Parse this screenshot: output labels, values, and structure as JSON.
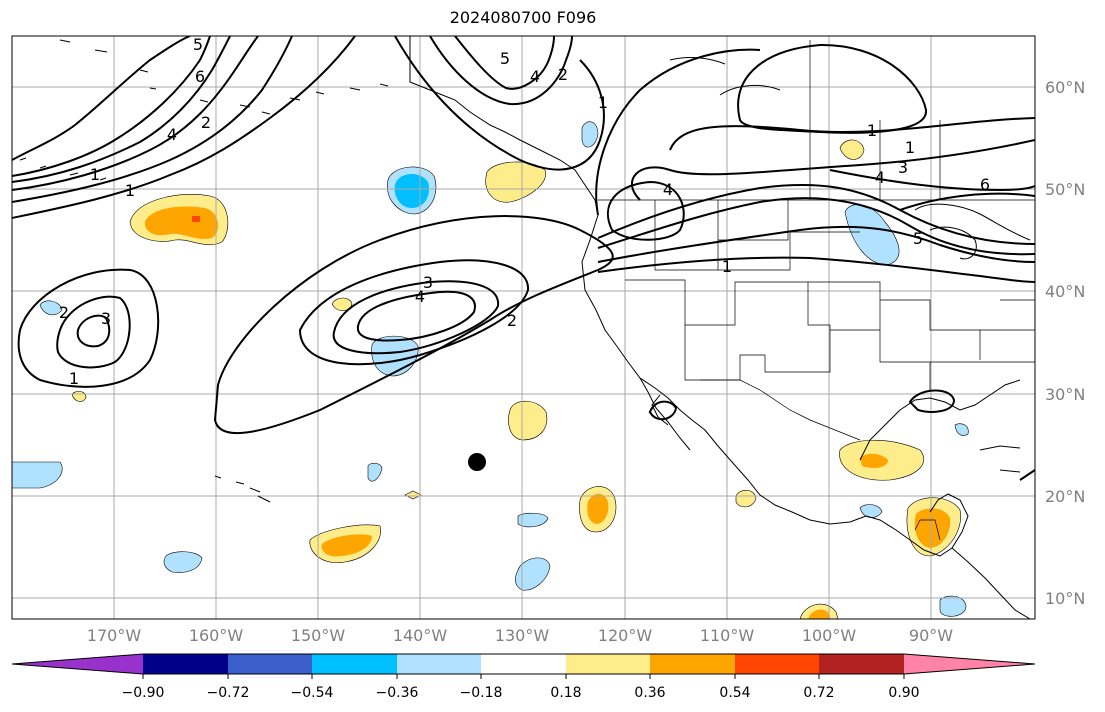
{
  "title": "2024080700 F096",
  "map": {
    "lat_labels": [
      "60°N",
      "50°N",
      "40°N",
      "30°N",
      "20°N",
      "10°N"
    ],
    "lon_labels": [
      "170°W",
      "160°W",
      "150°W",
      "140°W",
      "130°W",
      "120°W",
      "110°W",
      "100°W",
      "90°W"
    ],
    "contour_labels": [
      "5",
      "6",
      "4",
      "2",
      "1",
      "1",
      "5",
      "4",
      "1",
      "2",
      "4",
      "3",
      "4",
      "6",
      "5",
      "1",
      "3",
      "4",
      "2",
      "1",
      "3",
      "2",
      "1",
      "1"
    ]
  },
  "colorbar": {
    "colors": [
      "#9932cc",
      "#00008b",
      "#3a5fcd",
      "#00bfff",
      "#b0e2ff",
      "#ffffff",
      "#ffec8b",
      "#ffa500",
      "#ff4500",
      "#b22222",
      "#ff82ab"
    ],
    "tick_labels": [
      "−0.90",
      "−0.72",
      "−0.54",
      "−0.36",
      "−0.18",
      "0.18",
      "0.36",
      "0.54",
      "0.72",
      "0.90"
    ]
  }
}
